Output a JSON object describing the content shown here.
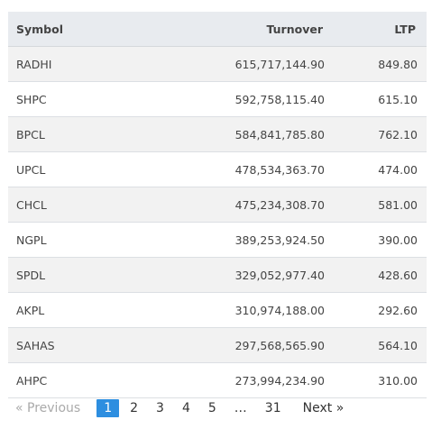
{
  "table": {
    "headers": {
      "symbol": "Symbol",
      "turnover": "Turnover",
      "ltp": "LTP"
    },
    "rows": [
      {
        "symbol": "RADHI",
        "turnover": "615,717,144.90",
        "ltp": "849.80"
      },
      {
        "symbol": "SHPC",
        "turnover": "592,758,115.40",
        "ltp": "615.10"
      },
      {
        "symbol": "BPCL",
        "turnover": "584,841,785.80",
        "ltp": "762.10"
      },
      {
        "symbol": "UPCL",
        "turnover": "478,534,363.70",
        "ltp": "474.00"
      },
      {
        "symbol": "CHCL",
        "turnover": "475,234,308.70",
        "ltp": "581.00"
      },
      {
        "symbol": "NGPL",
        "turnover": "389,253,924.50",
        "ltp": "390.00"
      },
      {
        "symbol": "SPDL",
        "turnover": "329,052,977.40",
        "ltp": "428.60"
      },
      {
        "symbol": "AKPL",
        "turnover": "310,974,188.00",
        "ltp": "292.60"
      },
      {
        "symbol": "SAHAS",
        "turnover": "297,568,565.90",
        "ltp": "564.10"
      },
      {
        "symbol": "AHPC",
        "turnover": "273,994,234.90",
        "ltp": "310.00"
      }
    ]
  },
  "pagination": {
    "previous": "« Previous",
    "pages": [
      "1",
      "2",
      "3",
      "4",
      "5"
    ],
    "ellipsis": "…",
    "last": "31",
    "next": "Next »",
    "current": "1",
    "accent_color": "#2d8ee0"
  }
}
